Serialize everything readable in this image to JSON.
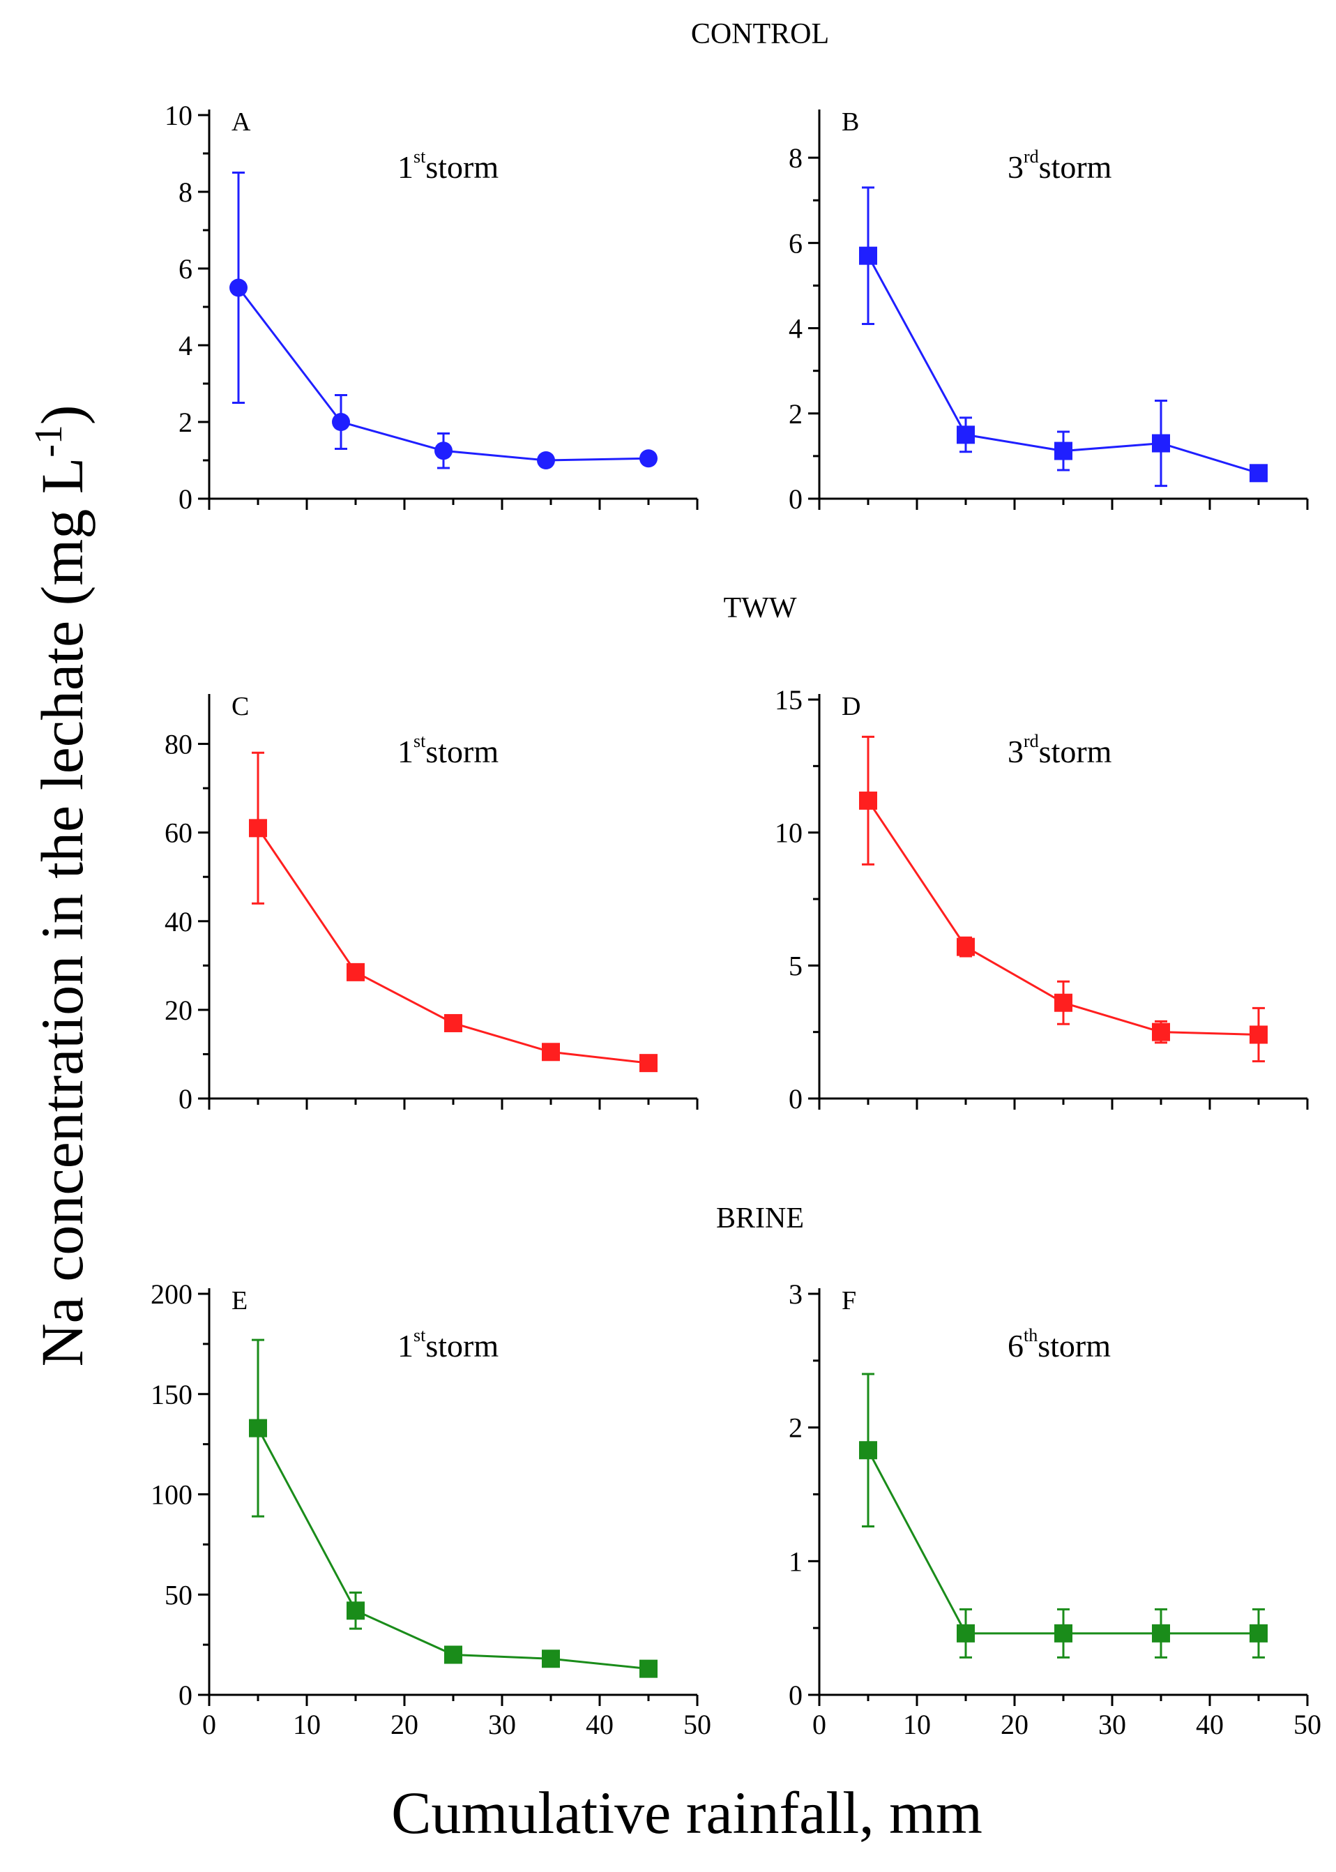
{
  "figure": {
    "ylabel_main": "Na concentration in the lechate (mg L",
    "ylabel_sup": "-1",
    "ylabel_close": ")",
    "xlabel": "Cumulative rainfall, mm"
  },
  "group_labels": [
    "CONTROL",
    "TWW",
    "BRINE"
  ],
  "chart_data": [
    {
      "id": "A",
      "type": "line",
      "group": "CONTROL",
      "letter": "A",
      "storm_num": "1",
      "storm_sup": "st",
      "storm_word": "storm",
      "color": "#1f1fff",
      "marker": "circle",
      "x": [
        3,
        13.5,
        24,
        34.5,
        45
      ],
      "y": [
        5.5,
        2.0,
        1.25,
        1.0,
        1.05
      ],
      "err": [
        3.0,
        0.7,
        0.45,
        0.1,
        0.1
      ],
      "xlim": [
        0,
        50
      ],
      "ylim": [
        0,
        10
      ],
      "yticks": [
        0,
        2,
        4,
        6,
        8,
        10
      ],
      "yticklabels": [
        "0",
        "2",
        "4",
        "6",
        "8",
        "10"
      ],
      "xticks": [
        0,
        10,
        20,
        30,
        40,
        50
      ],
      "xticklabels": []
    },
    {
      "id": "B",
      "type": "line",
      "group": "CONTROL",
      "letter": "B",
      "storm_num": "3",
      "storm_sup": "rd",
      "storm_word": "storm",
      "color": "#1f1fff",
      "marker": "square",
      "x": [
        5,
        15,
        25,
        35,
        45
      ],
      "y": [
        5.7,
        1.5,
        1.12,
        1.3,
        0.6
      ],
      "err": [
        1.6,
        0.4,
        0.45,
        1.0,
        0.1
      ],
      "xlim": [
        0,
        50
      ],
      "ylim": [
        0,
        9
      ],
      "yticks": [
        0,
        2,
        4,
        6,
        8
      ],
      "yticklabels": [
        "0",
        "2",
        "4",
        "6",
        "8"
      ],
      "xticks": [
        0,
        10,
        20,
        30,
        40,
        50
      ],
      "xticklabels": []
    },
    {
      "id": "C",
      "type": "line",
      "group": "TWW",
      "letter": "C",
      "storm_num": "1",
      "storm_sup": "st",
      "storm_word": "storm",
      "color": "#ff1f1f",
      "marker": "square",
      "x": [
        5,
        15,
        25,
        35,
        45
      ],
      "y": [
        61,
        28.5,
        17,
        10.5,
        8
      ],
      "err": [
        17,
        0.8,
        0.8,
        0.5,
        0.5
      ],
      "xlim": [
        0,
        50
      ],
      "ylim": [
        0,
        90
      ],
      "yticks": [
        0,
        20,
        40,
        60,
        80
      ],
      "yticklabels": [
        "0",
        "20",
        "40",
        "60",
        "80"
      ],
      "xticks": [
        0,
        10,
        20,
        30,
        40,
        50
      ],
      "xticklabels": []
    },
    {
      "id": "D",
      "type": "line",
      "group": "TWW",
      "letter": "D",
      "storm_num": "3",
      "storm_sup": "rd",
      "storm_word": "storm",
      "color": "#ff1f1f",
      "marker": "square",
      "x": [
        5,
        15,
        25,
        35,
        45
      ],
      "y": [
        11.2,
        5.7,
        3.6,
        2.5,
        2.4
      ],
      "err": [
        2.4,
        0.35,
        0.8,
        0.4,
        1.0
      ],
      "xlim": [
        0,
        50
      ],
      "ylim": [
        0,
        15
      ],
      "yticks": [
        0,
        5,
        10,
        15
      ],
      "yticklabels": [
        "0",
        "5",
        "10",
        "15"
      ],
      "xticks": [
        0,
        10,
        20,
        30,
        40,
        50
      ],
      "xticklabels": []
    },
    {
      "id": "E",
      "type": "line",
      "group": "BRINE",
      "letter": "E",
      "storm_num": "1",
      "storm_sup": "st",
      "storm_word": "storm",
      "color": "#1a8c1a",
      "marker": "square",
      "x": [
        5,
        15,
        25,
        35,
        45
      ],
      "y": [
        133,
        42,
        20,
        18,
        13
      ],
      "err": [
        44,
        9,
        2,
        2,
        2
      ],
      "xlim": [
        0,
        50
      ],
      "ylim": [
        0,
        200
      ],
      "yticks": [
        0,
        50,
        100,
        150,
        200
      ],
      "yticklabels": [
        "0",
        "50",
        "100",
        "150",
        "200"
      ],
      "xticks": [
        0,
        10,
        20,
        30,
        40,
        50
      ],
      "xticklabels": [
        "0",
        "10",
        "20",
        "30",
        "40",
        "50"
      ]
    },
    {
      "id": "F",
      "type": "line",
      "group": "BRINE",
      "letter": "F",
      "storm_num": "6",
      "storm_sup": "th",
      "storm_word": "storm",
      "color": "#1a8c1a",
      "marker": "square",
      "x": [
        5,
        15,
        25,
        35,
        45
      ],
      "y": [
        1.83,
        0.46,
        0.46,
        0.46,
        0.46
      ],
      "err": [
        0.57,
        0.18,
        0.18,
        0.18,
        0.18
      ],
      "xlim": [
        0,
        50
      ],
      "ylim": [
        0,
        3
      ],
      "yticks": [
        0,
        1,
        2,
        3
      ],
      "yticklabels": [
        "0",
        "1",
        "2",
        "3"
      ],
      "xticks": [
        0,
        10,
        20,
        30,
        40,
        50
      ],
      "xticklabels": [
        "0",
        "10",
        "20",
        "30",
        "40",
        "50"
      ]
    }
  ]
}
